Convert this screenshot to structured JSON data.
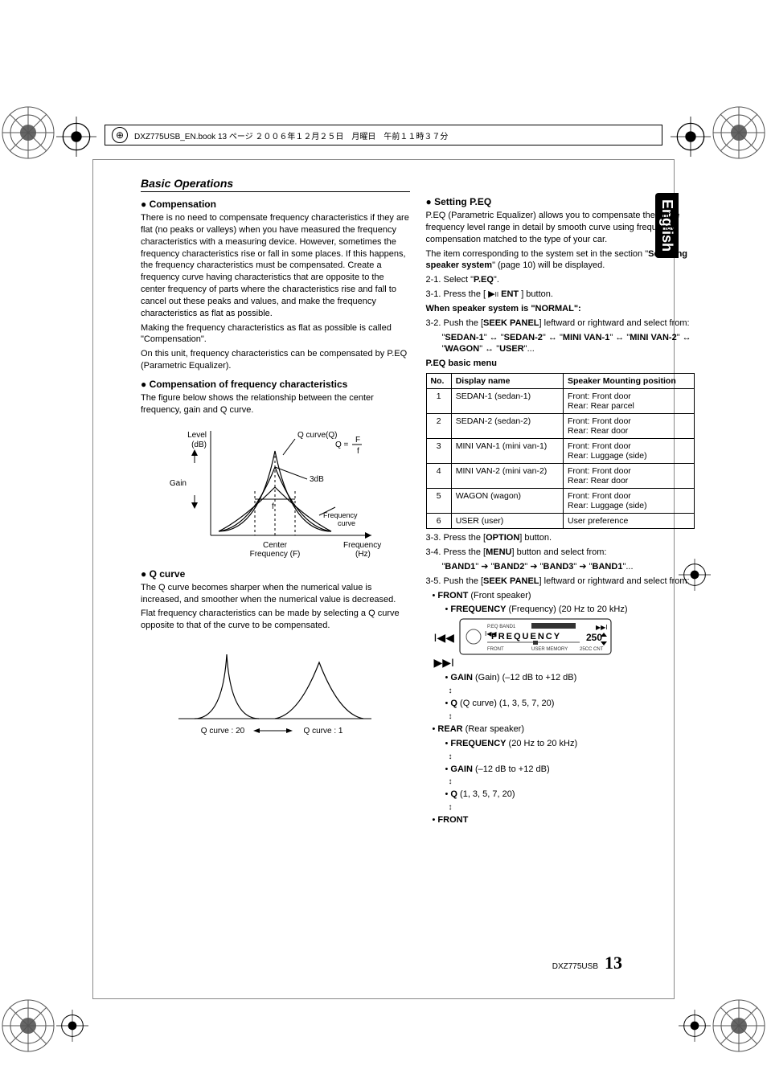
{
  "topbar": {
    "text": "DXZ775USB_EN.book  13 ページ  ２００６年１２月２５日　月曜日　午前１１時３７分"
  },
  "language_tab": "English",
  "section_header": "Basic Operations",
  "left": {
    "h1": "Compensation",
    "p1": "There is no need to compensate frequency characteristics if they are flat (no peaks or valleys) when you have measured the frequency characteristics with a measuring device. However, sometimes the frequency characteristics rise or fall in some places. If this happens, the frequency characteristics must be compensated. Create a frequency curve having characteristics that are opposite to the center frequency of parts where the characteristics rise and fall to cancel out these peaks and values, and make the frequency characteristics as flat as possible.",
    "p2": "Making the frequency characteristics as flat as possible is called \"Compensation\".",
    "p3": "On this unit, frequency characteristics can be compensated by P.EQ (Parametric Equalizer).",
    "h2": "Compensation of frequency characteristics",
    "p4": "The figure below shows the relationship between the center frequency, gain and Q curve.",
    "fig1": {
      "level_label": "Level\n(dB)",
      "gain_label": "Gain",
      "qcurve_label": "Q curve(Q)",
      "qeq_label": "Q = F ÷ f",
      "qeq_top": "F",
      "qeq_bot": "f",
      "three_db": "3dB",
      "f_label": "f",
      "freq_curve": "Frequency curve",
      "center_freq": "Center Frequency (F)",
      "freq_hz": "Frequency (Hz)"
    },
    "h3": "Q curve",
    "p5": "The Q curve becomes sharper when the numerical value is increased, and smoother when the numerical value is decreased.",
    "p6": "Flat frequency characteristics can be made by selecting a Q curve opposite to that of the curve to be compensated.",
    "fig2": {
      "left": "Q curve : 20",
      "right": "Q curve : 1"
    }
  },
  "right": {
    "h1": "Setting P.EQ",
    "p1": "P.EQ (Parametric Equalizer) allows you to compensate the entire frequency level range in detail by smooth curve using frequency compensation matched to the type of your car.",
    "p2a": "The item corresponding to the system set in the section \"",
    "p2b": "Selecting speaker system",
    "p2c": "\" (page 10) will be displayed.",
    "s21": "2-1.  Select \"",
    "s21b": "P.EQ",
    "s21c": "\".",
    "s31a": "3-1.  Press the [ ",
    "s31b": " ENT",
    "s31c": " ] button.",
    "when": "When speaker system is \"NORMAL\":",
    "s32a": "3-2.  Push the [",
    "s32b": "SEEK PANEL",
    "s32c": "] leftward or rightward and select from:",
    "seq1": "\"SEDAN-1\" ↔ \"SEDAN-2\" ↔ \"MINI VAN-1\" ↔ \"MINI VAN-2\" ↔ \"WAGON\" ↔ \"USER\"...",
    "table_title": "P.EQ basic menu",
    "table": {
      "headers": [
        "No.",
        "Display name",
        "Speaker Mounting position"
      ],
      "rows": [
        [
          "1",
          "SEDAN-1 (sedan-1)",
          "Front: Front door\nRear: Rear parcel"
        ],
        [
          "2",
          "SEDAN-2 (sedan-2)",
          "Front: Front door\nRear: Rear door"
        ],
        [
          "3",
          "MINI VAN-1 (mini van-1)",
          "Front: Front door\nRear: Luggage (side)"
        ],
        [
          "4",
          "MINI VAN-2 (mini van-2)",
          "Front: Front door\nRear: Rear door"
        ],
        [
          "5",
          "WAGON (wagon)",
          "Front: Front door\nRear: Luggage (side)"
        ],
        [
          "6",
          "USER (user)",
          "User preference"
        ]
      ]
    },
    "s33a": "3-3.  Press the [",
    "s33b": "OPTION",
    "s33c": "] button.",
    "s34a": "3-4.  Press the [",
    "s34b": "MENU",
    "s34c": "] button and select from:",
    "seq2": "\"BAND1\" ➔ \"BAND2\" ➔ \"BAND3\" ➔ \"BAND1\"...",
    "s35a": "3-5.  Push the [",
    "s35b": "SEEK PANEL",
    "s35c": "] leftward or rightward and select from:",
    "front_label": "FRONT",
    "front_desc": " (Front speaker)",
    "freq_label": "FREQUENCY",
    "freq_desc": " (Frequency) (20 Hz to 20 kHz)",
    "gain_label": "GAIN",
    "gain_desc": " (Gain) (–12 dB to +12 dB)",
    "q_label": "Q",
    "q_desc": " (Q curve) (1, 3, 5, 7, 20)",
    "rear_label": "REAR",
    "rear_desc": "  (Rear speaker)",
    "freq2_desc": " (20 Hz to 20 kHz)",
    "gain2_desc": " (–12 dB to +12 dB)",
    "q2_desc": " (1, 3, 5, 7, 20)",
    "front2_label": "FRONT",
    "display": {
      "line1": "P.EQ BAND1",
      "line2": "FREQUENCY",
      "line3": "FRONT    USER MEMORY",
      "val": "250",
      "ext": "25CC CNT"
    }
  },
  "footer": {
    "model": "DXZ775USB",
    "page": "13"
  },
  "colors": {
    "black": "#000000",
    "white": "#ffffff",
    "gray": "#888888"
  }
}
